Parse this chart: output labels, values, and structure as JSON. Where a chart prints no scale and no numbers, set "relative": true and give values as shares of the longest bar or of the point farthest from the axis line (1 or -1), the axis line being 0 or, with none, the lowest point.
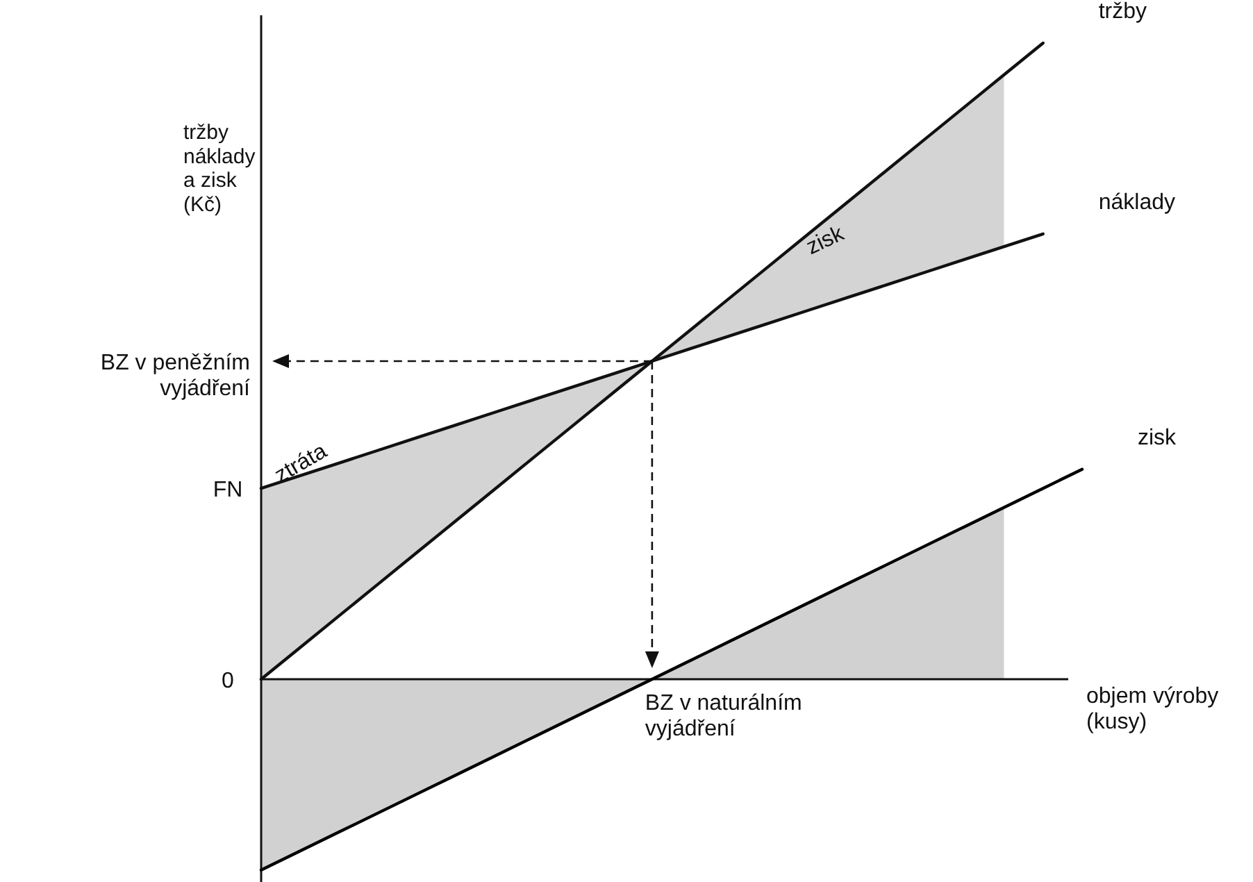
{
  "chart_data": {
    "type": "line",
    "relative": true,
    "line_style": "solid",
    "ylabel": "tržby\nnáklady\na zisk\n(Kč)",
    "xlabel": "objem výroby\n(kusy)",
    "categories": [
      null,
      null,
      null,
      null,
      null,
      null,
      null,
      null,
      null,
      null,
      null,
      null,
      null,
      null,
      null,
      null,
      null,
      null,
      null,
      null,
      null,
      null
    ],
    "series": [
      {
        "name": "tržby",
        "color": "#111111",
        "values": [
          0,
          0.05,
          0.1,
          0.15,
          0.2,
          0.25,
          0.3,
          0.35,
          0.4,
          0.45,
          0.5,
          0.55,
          0.6,
          0.65,
          0.7,
          0.75,
          0.8,
          0.85,
          0.9,
          0.95,
          1,
          null
        ],
        "lower": [
          0.3,
          0.32,
          0.34,
          0.36,
          0.38,
          0.4,
          0.42,
          0.44,
          0.46,
          0.48,
          0.5,
          0.52,
          0.54,
          0.56,
          0.58,
          0.6,
          0.62,
          0.64,
          0.66,
          0.68,
          null,
          null
        ],
        "upper": [
          0,
          0.05,
          0.1,
          0.15,
          0.2,
          0.25,
          0.3,
          0.35,
          0.4,
          0.45,
          0.5,
          0.55,
          0.6,
          0.65,
          0.7,
          0.75,
          0.8,
          0.85,
          0.9,
          0.95,
          null,
          null
        ]
      },
      {
        "name": "náklady",
        "color": "#111111",
        "values": [
          0.3,
          0.32,
          0.34,
          0.36,
          0.38,
          0.4,
          0.42,
          0.44,
          0.46,
          0.48,
          0.5,
          0.52,
          0.54,
          0.56,
          0.58,
          0.6,
          0.62,
          0.64,
          0.66,
          0.68,
          0.7,
          null
        ]
      },
      {
        "name": "zisk",
        "color": "#000000",
        "values": [
          -0.3,
          -0.27,
          -0.24,
          -0.21,
          -0.18,
          -0.15,
          -0.12,
          -0.09,
          -0.06,
          -0.03,
          0,
          0.03,
          0.06,
          0.09,
          0.12,
          0.15,
          0.18,
          0.21,
          0.24,
          0.27,
          0.3,
          0.33
        ],
        "lower": [
          -0.3,
          -0.27,
          -0.24,
          -0.21,
          -0.18,
          -0.15,
          -0.12,
          -0.09,
          -0.06,
          -0.03,
          0,
          0.03,
          0.06,
          0.09,
          0.12,
          0.15,
          0.18,
          0.21,
          0.24,
          0.27,
          null,
          null
        ],
        "upper": [
          0,
          0,
          0,
          0,
          0,
          0,
          0,
          0,
          0,
          0,
          0,
          0,
          0,
          0,
          0,
          0,
          0,
          0,
          0,
          0,
          null,
          null
        ]
      }
    ],
    "annotations": [
      "BZ v peněžním\nvyjádření",
      {
        "text": "BZ v naturálním\nvyjádření",
        "y": 0
      },
      "FN",
      "0",
      "zisk",
      "ztráta"
    ]
  }
}
